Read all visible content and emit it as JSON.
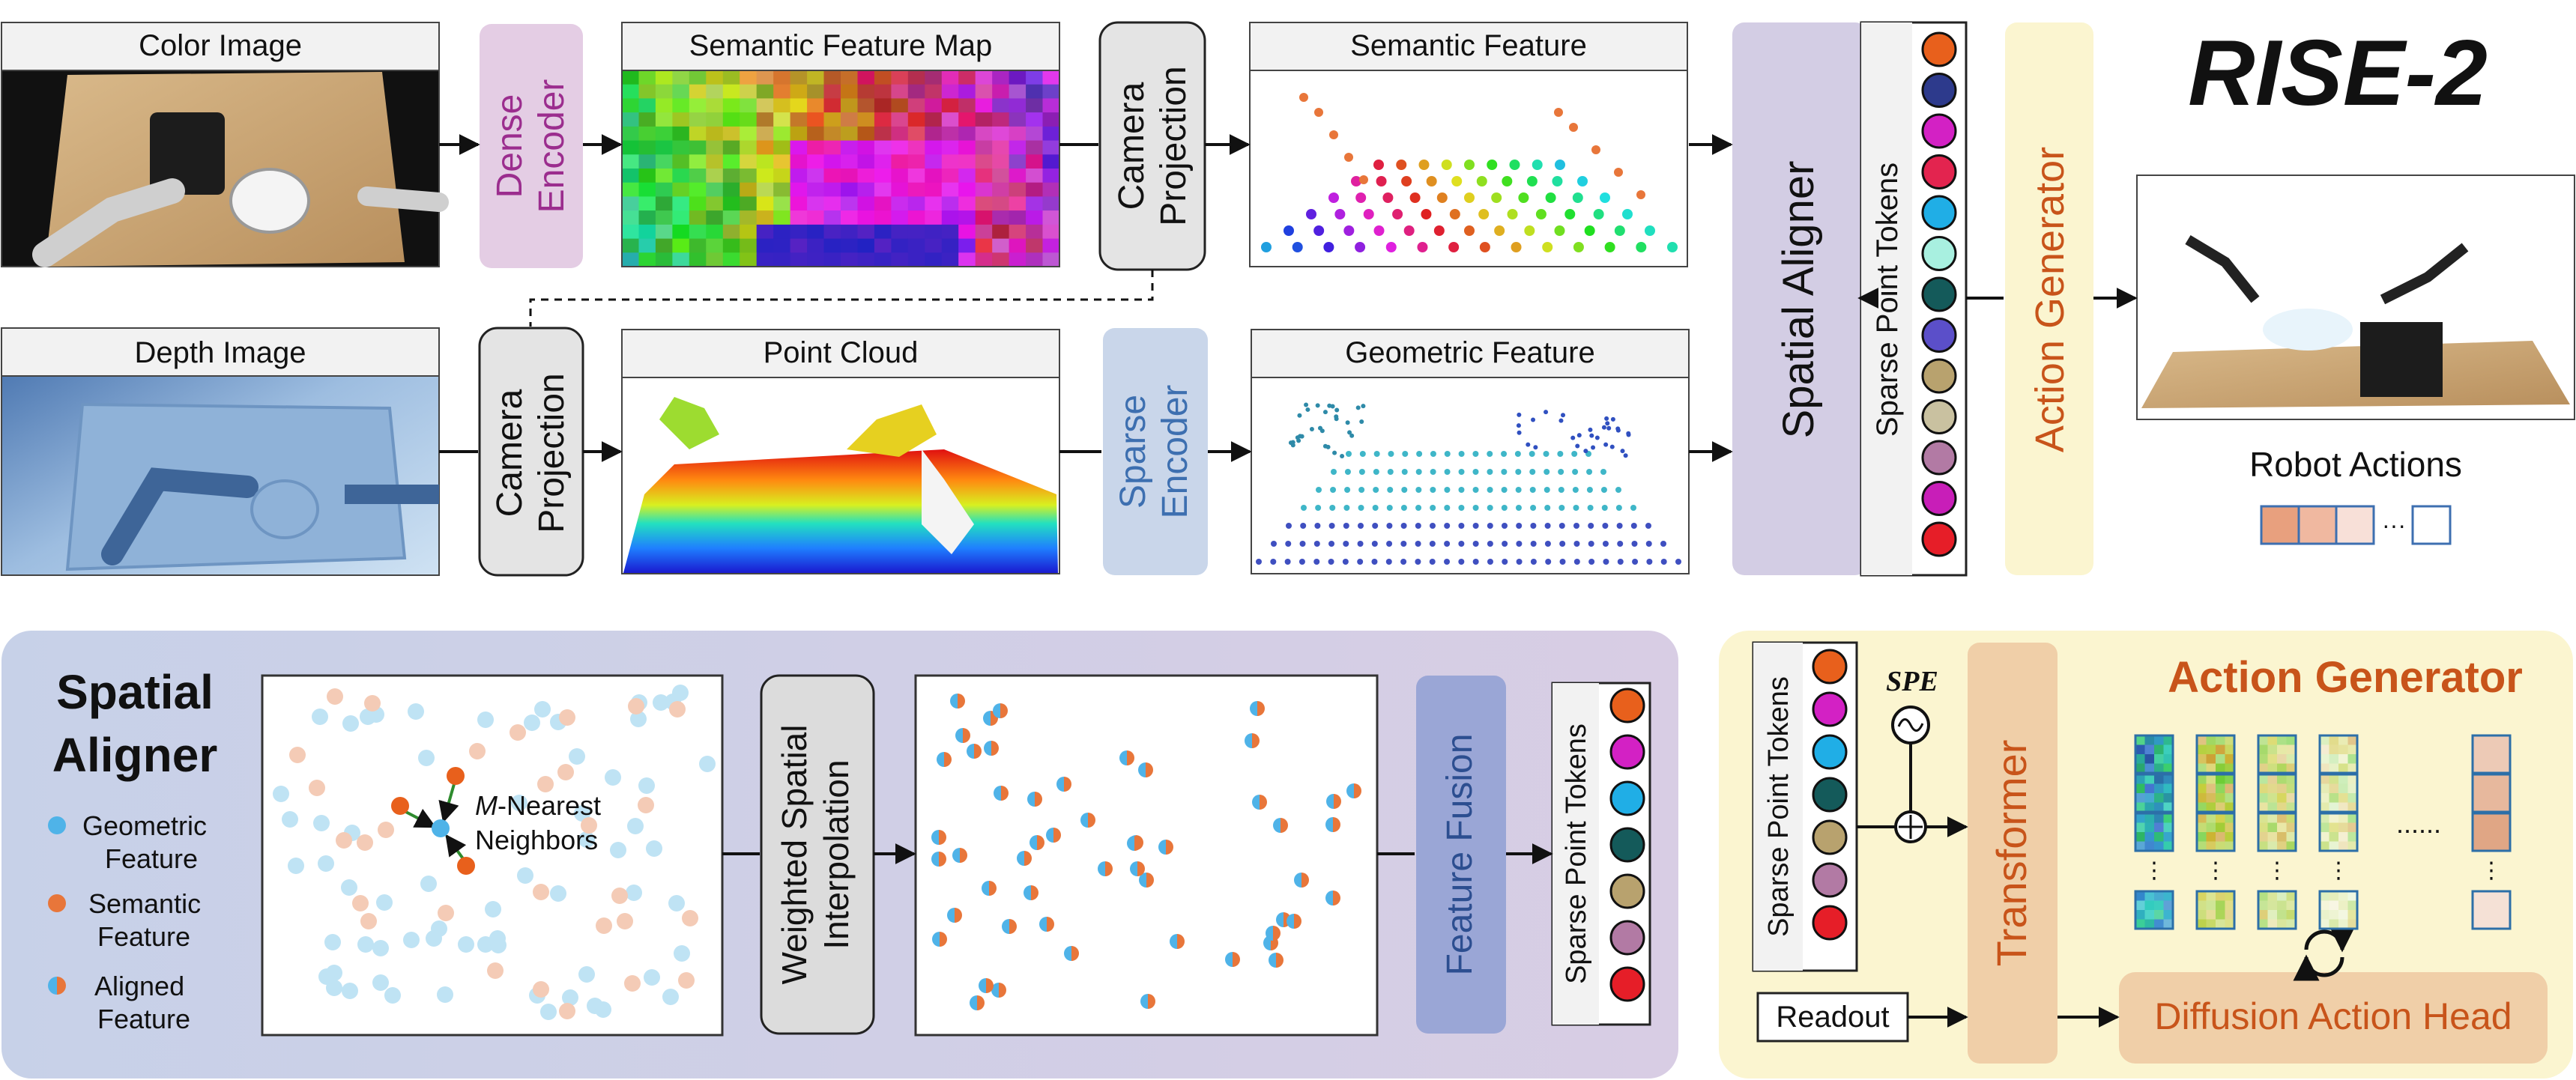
{
  "title": "RISE-2",
  "top": {
    "color_image_label": "Color Image",
    "depth_image_label": "Depth Image",
    "dense_encoder": [
      "Dense",
      "Encoder"
    ],
    "semantic_feature_map_label": "Semantic Feature Map",
    "camera_projection": [
      "Camera",
      "Projection"
    ],
    "semantic_feature_label": "Semantic Feature",
    "point_cloud_label": "Point Cloud",
    "sparse_encoder": [
      "Sparse",
      "Encoder"
    ],
    "geometric_feature_label": "Geometric Feature",
    "spatial_aligner": "Spatial Aligner",
    "sparse_point_tokens": "Sparse Point Tokens",
    "action_generator": "Action Generator",
    "robot_actions_label": "Robot Actions",
    "ellipsis": "···",
    "token_colors": [
      "#e8601c",
      "#2d3a8c",
      "#d321c4",
      "#e3244f",
      "#20aee6",
      "#a8f0e0",
      "#145a5a",
      "#5b4fc9",
      "#b8a26e",
      "#c9c1a0",
      "#b27aa4",
      "#c81eb8",
      "#e61e28"
    ]
  },
  "aligner": {
    "title": [
      "Spatial",
      "Aligner"
    ],
    "legend": [
      {
        "label": [
          "Geometric",
          "Feature"
        ],
        "kind": "geometric"
      },
      {
        "label": [
          "Semantic",
          "Feature"
        ],
        "kind": "semantic"
      },
      {
        "label": [
          "Aligned",
          "Feature"
        ],
        "kind": "aligned"
      }
    ],
    "neighbors_label_italic": "M",
    "neighbors_label": [
      "-Nearest",
      "Neighbors"
    ],
    "interp": [
      "Weighted Spatial",
      "Interpolation"
    ],
    "feature_fusion": "Feature Fusion",
    "sparse_point_tokens": "Sparse Point Tokens",
    "token_colors": [
      "#e8601c",
      "#d321c4",
      "#20aee6",
      "#145a5a",
      "#b8a26e",
      "#b27aa4",
      "#e61e28"
    ]
  },
  "generator": {
    "title": "Action Generator",
    "sparse_point_tokens": "Sparse Point Tokens",
    "spe": "SPE",
    "transformer": "Transformer",
    "readout": "Readout",
    "diffusion_head": "Diffusion Action Head",
    "dots": "......",
    "token_colors": [
      "#e8601c",
      "#d321c4",
      "#20aee6",
      "#145a5a",
      "#b8a26e",
      "#b27aa4",
      "#e61e28"
    ]
  },
  "colors": {
    "semantic": "#e8763a",
    "geometric": "#8fd3f0",
    "aligned_left": "#4fb3e8",
    "aligned_right": "#e8763a",
    "accent_purple": "#9b2d8e",
    "accent_blue": "#3d6fb0",
    "accent_orange": "#c8541a",
    "title_orange": "#c8541a"
  }
}
